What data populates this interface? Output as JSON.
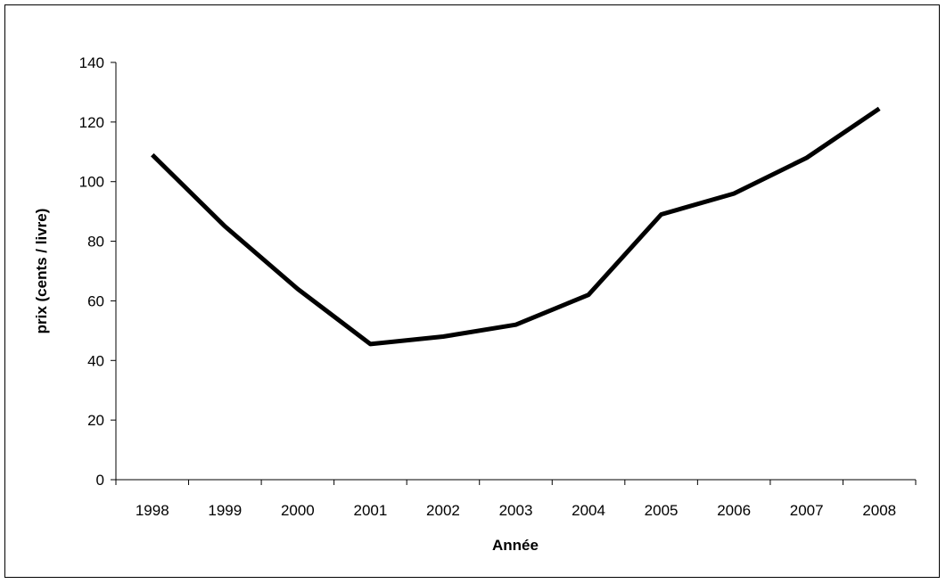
{
  "chart_data": {
    "type": "line",
    "title": "",
    "xlabel": "Année",
    "ylabel": "prix (cents / livre)",
    "categories": [
      "1998",
      "1999",
      "2000",
      "2001",
      "2002",
      "2003",
      "2004",
      "2005",
      "2006",
      "2007",
      "2008"
    ],
    "series": [
      {
        "values": [
          109,
          85,
          64,
          45.5,
          48,
          52,
          62,
          89,
          96,
          108,
          124.5
        ]
      }
    ],
    "ylim": [
      0,
      140
    ],
    "yticks": [
      0,
      20,
      40,
      60,
      80,
      100,
      120,
      140
    ],
    "grid": false,
    "legend": "none",
    "colors": {
      "line": "#000000",
      "axis": "#000000",
      "background": "#ffffff"
    }
  }
}
